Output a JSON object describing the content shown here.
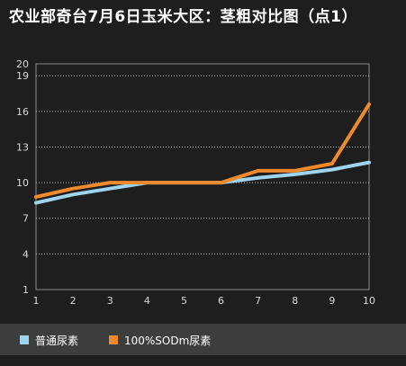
{
  "chart_data": {
    "type": "line",
    "title": "农业部奇台7月6日玉米大区：茎粗对比图（点1）",
    "xlabel": "",
    "ylabel": "",
    "x": [
      1,
      2,
      3,
      4,
      5,
      6,
      7,
      8,
      9,
      10
    ],
    "y_ticks": [
      1,
      4,
      7,
      10,
      13,
      16,
      19,
      20
    ],
    "ylim": [
      1,
      20
    ],
    "grid": true,
    "legend_position": "bottom",
    "series": [
      {
        "name": "普通尿素",
        "color": "#9fd4ee",
        "values": [
          8.3,
          9.0,
          9.5,
          10.0,
          10.0,
          10.0,
          10.4,
          10.7,
          11.1,
          11.7
        ]
      },
      {
        "name": "100%SODm尿素",
        "color": "#ef8a2c",
        "values": [
          8.8,
          9.5,
          10.0,
          10.0,
          10.0,
          10.0,
          11.0,
          11.0,
          11.6,
          16.6
        ]
      }
    ]
  }
}
